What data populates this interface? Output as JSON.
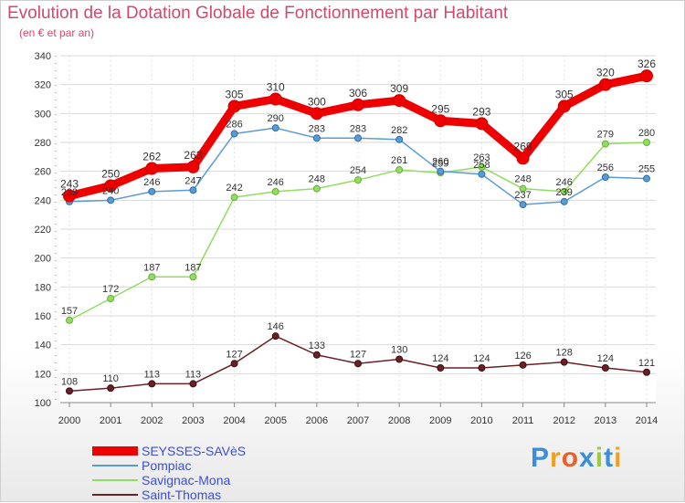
{
  "title": "Evolution de la Dotation Globale de Fonctionnement par Habitant",
  "subtitle": "(en € et par an)",
  "logo_text": "Proxiti",
  "chart_data": {
    "type": "line",
    "title": "Evolution de la Dotation Globale de Fonctionnement par Habitant",
    "subtitle": "(en € et par an)",
    "x": [
      "2000",
      "2001",
      "2002",
      "2003",
      "2004",
      "2005",
      "2006",
      "2007",
      "2008",
      "2009",
      "2010",
      "2011",
      "2012",
      "2013",
      "2014"
    ],
    "ylim": [
      100,
      340
    ],
    "yticks": [
      100,
      120,
      140,
      160,
      180,
      200,
      220,
      240,
      260,
      280,
      300,
      320,
      340
    ],
    "grid": true,
    "legend_position": "bottom-left",
    "series": [
      {
        "name": "SEYSSES-SAVèS",
        "color": "#ee0000",
        "values": [
          243,
          250,
          262,
          263,
          305,
          310,
          300,
          306,
          309,
          295,
          293,
          269,
          305,
          320,
          326
        ]
      },
      {
        "name": "Pompiac",
        "color": "#5b9bd5",
        "values": [
          239,
          240,
          246,
          247,
          286,
          290,
          283,
          283,
          282,
          260,
          258,
          237,
          239,
          256,
          255
        ]
      },
      {
        "name": "Savignac-Mona",
        "color": "#90dd60",
        "values": [
          157,
          172,
          187,
          187,
          242,
          246,
          248,
          254,
          261,
          259,
          263,
          248,
          246,
          279,
          280
        ]
      },
      {
        "name": "Saint-Thomas",
        "color": "#6b2027",
        "values": [
          108,
          110,
          113,
          113,
          127,
          146,
          133,
          127,
          130,
          124,
          124,
          126,
          128,
          124,
          121
        ]
      }
    ]
  }
}
